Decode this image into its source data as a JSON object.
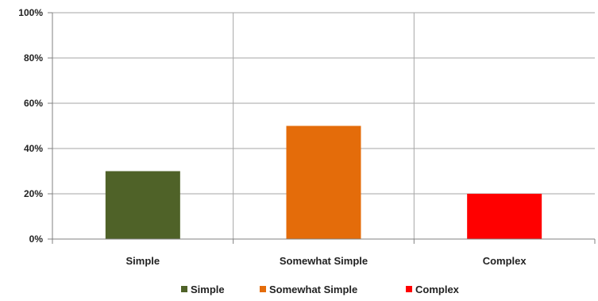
{
  "chart_data": {
    "type": "bar",
    "categories": [
      "Simple",
      "Somewhat Simple",
      "Complex"
    ],
    "values": [
      30,
      50,
      20
    ],
    "colors": [
      "#4f6228",
      "#e46c0a",
      "#ff0000"
    ],
    "ylim": [
      0,
      100
    ],
    "yticks": [
      "0%",
      "20%",
      "40%",
      "60%",
      "80%",
      "100%"
    ],
    "ytick_values": [
      0,
      20,
      40,
      60,
      80,
      100
    ],
    "grid": true,
    "vertical_category_dividers": true,
    "legend": {
      "placement": "bottom",
      "entries": [
        "Simple",
        "Somewhat Simple",
        "Complex"
      ]
    },
    "title": "",
    "xlabel": "",
    "ylabel": ""
  }
}
